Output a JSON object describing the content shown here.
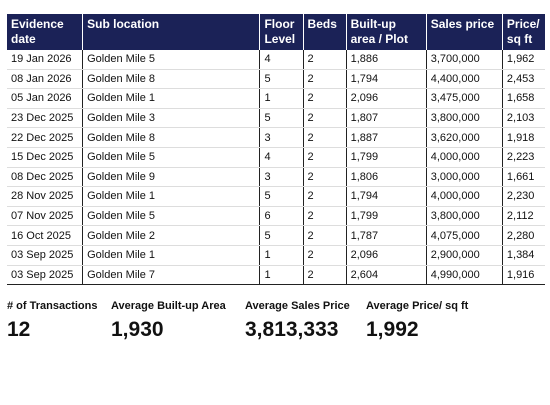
{
  "table": {
    "columns": [
      "Evidence date",
      "Sub location",
      "Floor Level",
      "Beds",
      "Built-up area / Plot",
      "Sales price",
      "Price/ sq ft"
    ],
    "rows": [
      [
        "19 Jan 2026",
        "Golden Mile 5",
        "4",
        "2",
        "1,886",
        "3,700,000",
        "1,962"
      ],
      [
        "08 Jan 2026",
        "Golden Mile 8",
        "5",
        "2",
        "1,794",
        "4,400,000",
        "2,453"
      ],
      [
        "05 Jan 2026",
        "Golden Mile 1",
        "1",
        "2",
        "2,096",
        "3,475,000",
        "1,658"
      ],
      [
        "23 Dec 2025",
        "Golden Mile 3",
        "5",
        "2",
        "1,807",
        "3,800,000",
        "2,103"
      ],
      [
        "22 Dec 2025",
        "Golden Mile 8",
        "3",
        "2",
        "1,887",
        "3,620,000",
        "1,918"
      ],
      [
        "15 Dec 2025",
        "Golden Mile 5",
        "4",
        "2",
        "1,799",
        "4,000,000",
        "2,223"
      ],
      [
        "08 Dec 2025",
        "Golden Mile 9",
        "3",
        "2",
        "1,806",
        "3,000,000",
        "1,661"
      ],
      [
        "28 Nov 2025",
        "Golden Mile 1",
        "5",
        "2",
        "1,794",
        "4,000,000",
        "2,230"
      ],
      [
        "07 Nov 2025",
        "Golden Mile 5",
        "6",
        "2",
        "1,799",
        "3,800,000",
        "2,112"
      ],
      [
        "16 Oct 2025",
        "Golden Mile 2",
        "5",
        "2",
        "1,787",
        "4,075,000",
        "2,280"
      ],
      [
        "03 Sep 2025",
        "Golden Mile 1",
        "1",
        "2",
        "2,096",
        "2,900,000",
        "1,384"
      ],
      [
        "03 Sep 2025",
        "Golden Mile 7",
        "1",
        "2",
        "2,604",
        "4,990,000",
        "1,916"
      ]
    ]
  },
  "summary": [
    {
      "label": "# of Transactions",
      "value": "12"
    },
    {
      "label": "Average Built-up Area",
      "value": "1,930"
    },
    {
      "label": "Average Sales Price",
      "value": "3,813,333"
    },
    {
      "label": "Average Price/ sq ft",
      "value": "1,992"
    }
  ]
}
